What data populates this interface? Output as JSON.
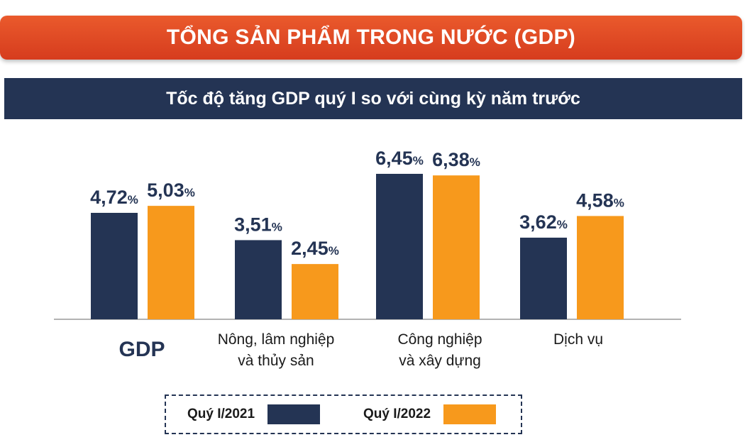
{
  "header": {
    "title": "TỔNG SẢN PHẨM TRONG NƯỚC (GDP)",
    "subtitle": "Tốc độ tăng GDP quý I so với cùng kỳ năm trước"
  },
  "chart_data": {
    "type": "bar",
    "title": "Tốc độ tăng GDP quý I so với cùng kỳ năm trước",
    "unit": "%",
    "categories": [
      "GDP",
      "Nông, lâm nghiệp\nvà thủy sản",
      "Công nghiệp\nvà xây dựng",
      "Dịch vụ"
    ],
    "series": [
      {
        "name": "Quý I/2021",
        "color": "#243454",
        "values": [
          4.72,
          3.51,
          6.45,
          3.62
        ],
        "labels": [
          "4,72",
          "3,51",
          "6,45",
          "3,62"
        ]
      },
      {
        "name": "Quý I/2022",
        "color": "#f7991c",
        "values": [
          5.03,
          2.45,
          6.38,
          4.58
        ],
        "labels": [
          "5,03",
          "2,45",
          "6,38",
          "4,58"
        ]
      }
    ],
    "ylim": [
      0,
      6.45
    ],
    "grid": false,
    "legend_position": "bottom"
  }
}
